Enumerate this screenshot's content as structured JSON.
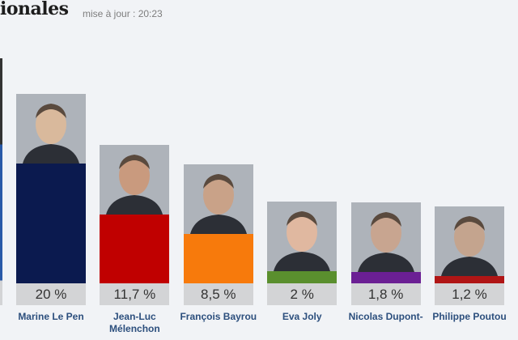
{
  "header": {
    "title": "ionales",
    "update": "mise à jour : 20:23"
  },
  "chart_data": {
    "type": "bar",
    "categories": [
      "Marine Le Pen",
      "Jean-Luc Mélenchon",
      "François Bayrou",
      "Eva Joly",
      "Nicolas Dupont-Aignan",
      "Philippe Poutou"
    ],
    "labels": [
      "Marine Le Pen",
      "Jean-Luc Mélenchon",
      "François Bayrou",
      "Eva Joly",
      "Nicolas Dupont-",
      "Philippe Poutou"
    ],
    "values": [
      20,
      11.7,
      8.5,
      2,
      1.8,
      1.2
    ],
    "value_labels": [
      "20 %",
      "11,7 %",
      "8,5 %",
      "2 %",
      "1,8 %",
      "1,2 %"
    ],
    "colors": [
      "#0b1a4f",
      "#c00000",
      "#f77a0c",
      "#5a8f2e",
      "#6b1f94",
      "#b01515"
    ],
    "ylim": [
      0,
      20
    ],
    "grid": false
  }
}
